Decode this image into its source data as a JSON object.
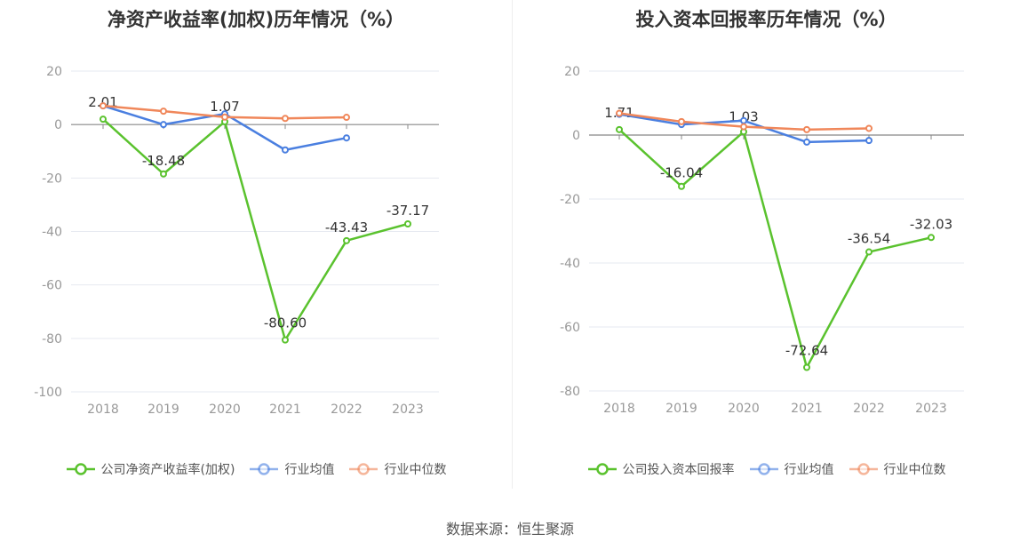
{
  "chart_data": [
    {
      "type": "line",
      "title": "净资产收益率(加权)历年情况（%）",
      "categories": [
        "2018",
        "2019",
        "2020",
        "2021",
        "2022",
        "2023"
      ],
      "ylim": [
        -100,
        20
      ],
      "yticks": [
        20,
        0,
        -20,
        -40,
        -60,
        -80,
        -100
      ],
      "grid": true,
      "legend_position": "bottom",
      "series": [
        {
          "name": "公司净资产收益率(加权)",
          "color": "#5ac22e",
          "values": [
            2.01,
            -18.48,
            1.07,
            -80.6,
            -43.43,
            -37.17
          ],
          "labels": [
            "2.01",
            "-18.48",
            "1.07",
            "-80.60",
            "-43.43",
            "-37.17"
          ]
        },
        {
          "name": "行业均值",
          "color": "#4a7fe0",
          "values": [
            7.0,
            0.0,
            4.0,
            -9.5,
            -5.0,
            null
          ]
        },
        {
          "name": "行业中位数",
          "color": "#f0875a",
          "values": [
            7.0,
            5.0,
            2.8,
            2.3,
            2.7,
            null
          ]
        }
      ]
    },
    {
      "type": "line",
      "title": "投入资本回报率历年情况（%）",
      "categories": [
        "2018",
        "2019",
        "2020",
        "2021",
        "2022",
        "2023"
      ],
      "ylim": [
        -80,
        20
      ],
      "yticks": [
        20,
        0,
        -20,
        -40,
        -60,
        -80
      ],
      "grid": true,
      "legend_position": "bottom",
      "series": [
        {
          "name": "公司投入资本回报率",
          "color": "#5ac22e",
          "values": [
            1.71,
            -16.04,
            1.03,
            -72.64,
            -36.54,
            -32.03
          ],
          "labels": [
            "1.71",
            "-16.04",
            "1.03",
            "-72.64",
            "-36.54",
            "-32.03"
          ]
        },
        {
          "name": "行业均值",
          "color": "#4a7fe0",
          "values": [
            6.5,
            3.3,
            4.5,
            -2.2,
            -1.7,
            null
          ]
        },
        {
          "name": "行业中位数",
          "color": "#f0875a",
          "values": [
            6.8,
            4.2,
            2.6,
            1.7,
            2.1,
            null
          ]
        }
      ]
    }
  ],
  "source": "数据来源：恒生聚源"
}
